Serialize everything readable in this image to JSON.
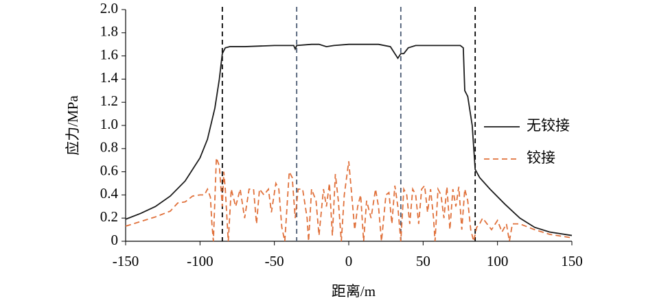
{
  "chart_data": {
    "type": "line",
    "x_label": "距离/m",
    "y_label": "应力/MPa",
    "xlim": [
      -150,
      150
    ],
    "xticks": [
      -150,
      -100,
      -50,
      0,
      50,
      100,
      150
    ],
    "ylim": [
      0,
      2
    ],
    "yticks": [
      0,
      0.2,
      0.4,
      0.6,
      0.8,
      {
        "value": 1,
        "label": "1.0"
      },
      1.2,
      1.4,
      1.6,
      1.8,
      {
        "value": 2,
        "label": "2.0"
      }
    ],
    "legend": "right",
    "reference_lines": [
      {
        "x": -85,
        "color": "#000000"
      },
      {
        "x": -35,
        "color": "#4a5a72"
      },
      {
        "x": 35,
        "color": "#4a5a72"
      },
      {
        "x": 85,
        "color": "#000000"
      }
    ],
    "series": [
      {
        "name": "无铰接",
        "color": "#1a1a1a",
        "dash": "solid",
        "x": [
          -150,
          -140,
          -130,
          -120,
          -110,
          -100,
          -95,
          -90,
          -87,
          -85,
          -83,
          -80,
          -70,
          -50,
          -37,
          -36,
          -35,
          -25,
          -20,
          -15,
          -10,
          0,
          20,
          28,
          31,
          33,
          35,
          37,
          40,
          45,
          60,
          75,
          77,
          78,
          80,
          83,
          85,
          88,
          95,
          105,
          115,
          125,
          135,
          150
        ],
        "values": [
          0.19,
          0.24,
          0.3,
          0.39,
          0.52,
          0.72,
          0.88,
          1.15,
          1.4,
          1.62,
          1.67,
          1.68,
          1.68,
          1.69,
          1.69,
          1.66,
          1.69,
          1.7,
          1.7,
          1.68,
          1.69,
          1.7,
          1.7,
          1.68,
          1.62,
          1.58,
          1.62,
          1.62,
          1.67,
          1.69,
          1.69,
          1.69,
          1.67,
          1.3,
          1.25,
          1.0,
          0.62,
          0.55,
          0.45,
          0.32,
          0.2,
          0.12,
          0.08,
          0.05
        ]
      },
      {
        "name": "铰接",
        "color": "#e0703a",
        "dash": "dashed",
        "x": [
          -150,
          -140,
          -130,
          -120,
          -115,
          -110,
          -105,
          -100,
          -97,
          -95,
          -93,
          -92,
          -91,
          -89,
          -87,
          -85,
          -84,
          -83,
          -81,
          -79,
          -76,
          -73,
          -70,
          -67,
          -64,
          -62,
          -60,
          -57,
          -54,
          -52,
          -49,
          -47,
          -45,
          -43,
          -40,
          -38,
          -36,
          -34,
          -31,
          -28,
          -27,
          -25,
          -22,
          -20,
          -17,
          -15,
          -13,
          -11,
          -9,
          -7,
          -5,
          -3,
          0,
          2,
          4,
          6,
          8,
          10,
          12,
          15,
          18,
          20,
          22,
          25,
          27,
          29,
          31,
          33,
          35,
          37,
          39,
          41,
          43,
          45,
          47,
          49,
          51,
          53,
          55,
          57,
          58,
          60,
          62,
          64,
          66,
          68,
          70,
          72,
          74,
          76,
          78,
          80,
          82,
          84,
          86,
          88,
          90,
          93,
          96,
          100,
          103,
          106,
          108,
          110,
          115,
          125,
          135,
          150
        ],
        "values": [
          0.13,
          0.17,
          0.21,
          0.26,
          0.33,
          0.34,
          0.39,
          0.4,
          0.4,
          0.45,
          0.38,
          0.15,
          0,
          0.72,
          0.65,
          0.3,
          0.6,
          0.45,
          0,
          0.45,
          0.3,
          0.45,
          0.2,
          0.45,
          0.45,
          0.15,
          0.45,
          0.4,
          0.45,
          0.25,
          0.5,
          0.45,
          0.12,
          0,
          0.6,
          0.55,
          0.2,
          0.45,
          0.45,
          0.2,
          0,
          0.45,
          0.35,
          0.05,
          0.45,
          0.3,
          0.5,
          0.05,
          0.58,
          0.35,
          0,
          0.4,
          0.69,
          0.4,
          0.1,
          0.3,
          0.4,
          0,
          0.35,
          0.2,
          0.45,
          0.3,
          0,
          0.4,
          0.42,
          0.15,
          0.48,
          0.3,
          0,
          0.45,
          0.4,
          0.15,
          0.45,
          0.4,
          0.15,
          0.45,
          0.48,
          0.25,
          0.45,
          0.2,
          0,
          0.45,
          0.4,
          0.2,
          0.47,
          0.1,
          0.45,
          0.3,
          0.47,
          0.1,
          0.45,
          0.35,
          0.1,
          0,
          0.12,
          0.15,
          0.2,
          0.15,
          0.1,
          0.18,
          0.08,
          0.15,
          0,
          0.15,
          0.15,
          0.1,
          0.06,
          0.03
        ]
      }
    ]
  }
}
